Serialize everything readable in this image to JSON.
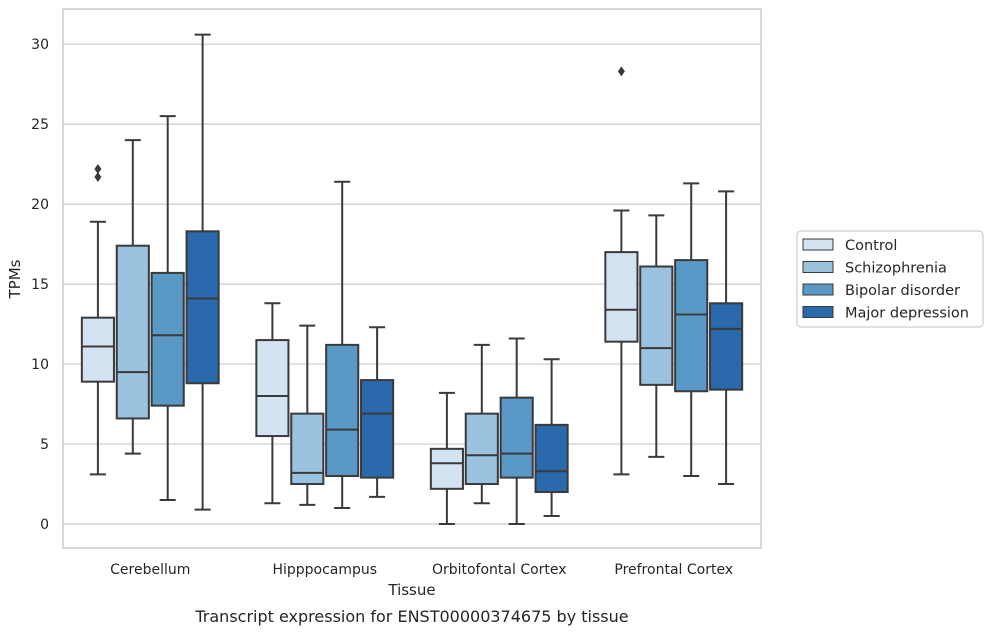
{
  "chart_data": {
    "type": "box",
    "title": "",
    "caption": "Transcript expression for ENST00000374675 by tissue",
    "xlabel": "Tissue",
    "ylabel": "TPMs",
    "ylim": [
      -1.5,
      32.2
    ],
    "yticks": [
      0,
      5,
      10,
      15,
      20,
      25,
      30
    ],
    "grid": true,
    "legend_position": "right",
    "categories": [
      "Cerebellum",
      "Hipppocampus",
      "Orbitofontal Cortex",
      "Prefrontal Cortex"
    ],
    "series": [
      {
        "name": "Control",
        "color": "#d4e3f2",
        "boxes": [
          {
            "whislo": 3.1,
            "q1": 8.9,
            "med": 11.1,
            "q3": 12.9,
            "whishi": 18.9,
            "fliers": [
              21.7,
              22.2
            ]
          },
          {
            "whislo": 1.3,
            "q1": 5.5,
            "med": 8.0,
            "q3": 11.5,
            "whishi": 13.8,
            "fliers": []
          },
          {
            "whislo": 0.0,
            "q1": 2.2,
            "med": 3.8,
            "q3": 4.7,
            "whishi": 8.2,
            "fliers": []
          },
          {
            "whislo": 3.1,
            "q1": 11.4,
            "med": 13.4,
            "q3": 17.0,
            "whishi": 19.6,
            "fliers": [
              28.3
            ]
          }
        ]
      },
      {
        "name": "Schizophrenia",
        "color": "#9bc2df",
        "boxes": [
          {
            "whislo": 4.4,
            "q1": 6.6,
            "med": 9.5,
            "q3": 17.4,
            "whishi": 24.0,
            "fliers": []
          },
          {
            "whislo": 1.2,
            "q1": 2.5,
            "med": 3.2,
            "q3": 6.9,
            "whishi": 12.4,
            "fliers": []
          },
          {
            "whislo": 1.3,
            "q1": 2.5,
            "med": 4.3,
            "q3": 6.9,
            "whishi": 11.2,
            "fliers": []
          },
          {
            "whislo": 4.2,
            "q1": 8.7,
            "med": 11.0,
            "q3": 16.1,
            "whishi": 19.3,
            "fliers": []
          }
        ]
      },
      {
        "name": "Bipolar disorder",
        "color": "#5a98c6",
        "boxes": [
          {
            "whislo": 1.5,
            "q1": 7.4,
            "med": 11.8,
            "q3": 15.7,
            "whishi": 25.5,
            "fliers": []
          },
          {
            "whislo": 1.0,
            "q1": 3.0,
            "med": 5.9,
            "q3": 11.2,
            "whishi": 21.4,
            "fliers": []
          },
          {
            "whislo": 0.0,
            "q1": 2.9,
            "med": 4.4,
            "q3": 7.9,
            "whishi": 11.6,
            "fliers": []
          },
          {
            "whislo": 3.0,
            "q1": 8.3,
            "med": 13.1,
            "q3": 16.5,
            "whishi": 21.3,
            "fliers": []
          }
        ]
      },
      {
        "name": "Major depression",
        "color": "#2a69ab",
        "boxes": [
          {
            "whislo": 0.9,
            "q1": 8.8,
            "med": 14.1,
            "q3": 18.3,
            "whishi": 30.6,
            "fliers": []
          },
          {
            "whislo": 1.7,
            "q1": 2.9,
            "med": 6.9,
            "q3": 9.0,
            "whishi": 12.3,
            "fliers": []
          },
          {
            "whislo": 0.5,
            "q1": 2.0,
            "med": 3.3,
            "q3": 6.2,
            "whishi": 10.3,
            "fliers": []
          },
          {
            "whislo": 2.5,
            "q1": 8.4,
            "med": 12.2,
            "q3": 13.8,
            "whishi": 20.8,
            "fliers": []
          }
        ]
      }
    ]
  }
}
